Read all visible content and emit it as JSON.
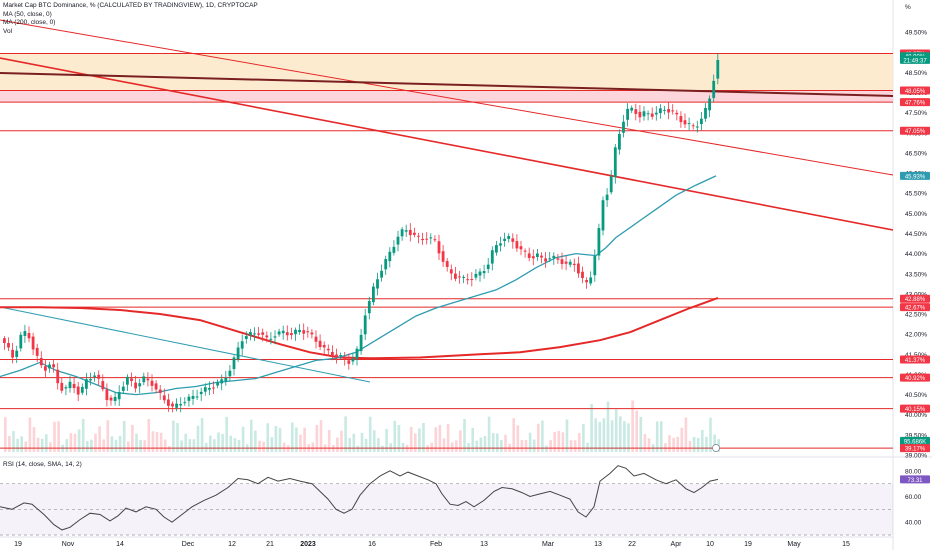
{
  "legend": {
    "title": "Market Cap BTC Dominance, % (CALCULATED BY TRADINGVIEW), 1D, CRYPTOCAP",
    "ma50": "MA (50, close, 0)",
    "ma200": "MA (200, close, 0)",
    "vol": "Vol",
    "rsi": "RSI (14, close, SMA, 14, 2)"
  },
  "axis": {
    "unit": "%",
    "price_ticks": [
      "49.50%",
      "49.00%",
      "48.50%",
      "48.00%",
      "47.50%",
      "47.00%",
      "46.50%",
      "46.00%",
      "45.50%",
      "45.00%",
      "44.50%",
      "44.00%",
      "43.50%",
      "43.00%",
      "42.50%",
      "42.00%",
      "41.50%",
      "41.00%",
      "40.50%",
      "40.00%",
      "39.50%",
      "39.00%"
    ],
    "rsi_ticks": [
      "80.00",
      "60.00",
      "40.00"
    ],
    "time_ticks": [
      "19",
      "Nov",
      "14",
      "Dec",
      "12",
      "21",
      "2023",
      "16",
      "Feb",
      "13",
      "Mar",
      "13",
      "22",
      "Apr",
      "10",
      "19",
      "May",
      "15"
    ]
  },
  "badges": [
    {
      "label": "48.97%",
      "color": "#f23645"
    },
    {
      "label": "48.90%",
      "color": "#089981"
    },
    {
      "label": "21:49:37",
      "color": "#089981"
    },
    {
      "label": "48.05%",
      "color": "#f23645"
    },
    {
      "label": "47.76%",
      "color": "#f23645"
    },
    {
      "label": "47.05%",
      "color": "#f23645"
    },
    {
      "label": "45.93%",
      "color": "#2e9cb0"
    },
    {
      "label": "42.88%",
      "color": "#f23645"
    },
    {
      "label": "42.67%",
      "color": "#f23645"
    },
    {
      "label": "41.37%",
      "color": "#f23645"
    },
    {
      "label": "40.92%",
      "color": "#f23645"
    },
    {
      "label": "40.15%",
      "color": "#f23645"
    },
    {
      "label": "95.686K",
      "color": "#089981"
    },
    {
      "label": "39.17%",
      "color": "#f23645"
    },
    {
      "label": "73.31",
      "color": "#7e57c2"
    }
  ],
  "colors": {
    "up": "#089981",
    "down": "#f23645",
    "ma50": "#2e9cb0",
    "ma200": "#e52828",
    "rsi": "#7e57c2",
    "resistance_zone": "#fde7c8",
    "red_zone": "#fbcfd3",
    "trendline": "#e52828",
    "blue_trend": "#2e9cb0"
  },
  "chart_data": {
    "type": "candlestick",
    "title": "Market Cap BTC Dominance, % (CALCULATED BY TRADINGVIEW), 1D, CRYPTOCAP",
    "ylim": [
      39.0,
      49.85
    ],
    "last_value": 48.9,
    "horizontal_levels": [
      48.97,
      48.05,
      47.76,
      47.05,
      42.88,
      42.67,
      41.37,
      40.92,
      40.15,
      39.17
    ],
    "zones": [
      {
        "from": 48.05,
        "to": 48.97,
        "color": "orange"
      },
      {
        "from": 47.76,
        "to": 48.05,
        "color": "red"
      }
    ],
    "ma50_last": 45.93,
    "rsi_last": 73.31,
    "rsi_range": [
      30,
      90
    ],
    "rsi_band": [
      30,
      70
    ],
    "price_path": [
      [
        0,
        41.9
      ],
      [
        5,
        41.7
      ],
      [
        12,
        41.4
      ],
      [
        20,
        42.0
      ],
      [
        26,
        42.05
      ],
      [
        34,
        41.5
      ],
      [
        42,
        41.1
      ],
      [
        50,
        41.3
      ],
      [
        56,
        40.8
      ],
      [
        62,
        40.6
      ],
      [
        70,
        40.8
      ],
      [
        78,
        40.5
      ],
      [
        86,
        40.9
      ],
      [
        94,
        41.0
      ],
      [
        100,
        40.7
      ],
      [
        106,
        40.4
      ],
      [
        112,
        40.3
      ],
      [
        118,
        40.6
      ],
      [
        126,
        40.9
      ],
      [
        134,
        40.7
      ],
      [
        142,
        40.9
      ],
      [
        150,
        40.8
      ],
      [
        158,
        40.5
      ],
      [
        166,
        40.3
      ],
      [
        172,
        40.15
      ],
      [
        178,
        40.3
      ],
      [
        184,
        40.35
      ],
      [
        192,
        40.45
      ],
      [
        198,
        40.55
      ],
      [
        206,
        40.65
      ],
      [
        214,
        40.75
      ],
      [
        222,
        40.85
      ],
      [
        230,
        41.2
      ],
      [
        236,
        41.6
      ],
      [
        242,
        41.95
      ],
      [
        250,
        42.0
      ],
      [
        258,
        42.05
      ],
      [
        266,
        41.85
      ],
      [
        274,
        42.0
      ],
      [
        282,
        42.05
      ],
      [
        290,
        42.0
      ],
      [
        298,
        42.1
      ],
      [
        306,
        42.05
      ],
      [
        314,
        41.85
      ],
      [
        322,
        41.65
      ],
      [
        330,
        41.5
      ],
      [
        338,
        41.45
      ],
      [
        346,
        41.3
      ],
      [
        352,
        41.4
      ],
      [
        358,
        41.7
      ],
      [
        362,
        42.4
      ],
      [
        368,
        42.8
      ],
      [
        374,
        43.3
      ],
      [
        380,
        43.6
      ],
      [
        386,
        43.9
      ],
      [
        392,
        44.2
      ],
      [
        398,
        44.5
      ],
      [
        404,
        44.6
      ],
      [
        410,
        44.5
      ],
      [
        418,
        44.35
      ],
      [
        426,
        44.4
      ],
      [
        434,
        44.3
      ],
      [
        440,
        43.9
      ],
      [
        446,
        43.6
      ],
      [
        452,
        43.45
      ],
      [
        458,
        43.4
      ],
      [
        464,
        43.35
      ],
      [
        470,
        43.4
      ],
      [
        478,
        43.5
      ],
      [
        486,
        43.7
      ],
      [
        492,
        44.1
      ],
      [
        498,
        44.3
      ],
      [
        506,
        44.4
      ],
      [
        512,
        44.3
      ],
      [
        518,
        44.1
      ],
      [
        524,
        44.0
      ],
      [
        530,
        43.9
      ],
      [
        536,
        43.95
      ],
      [
        542,
        43.85
      ],
      [
        550,
        43.9
      ],
      [
        558,
        43.85
      ],
      [
        566,
        43.7
      ],
      [
        572,
        43.8
      ],
      [
        578,
        43.5
      ],
      [
        584,
        43.2
      ],
      [
        590,
        43.5
      ],
      [
        596,
        44.3
      ],
      [
        602,
        45.4
      ],
      [
        608,
        45.6
      ],
      [
        614,
        46.6
      ],
      [
        620,
        47.2
      ],
      [
        626,
        47.55
      ],
      [
        632,
        47.6
      ],
      [
        638,
        47.4
      ],
      [
        644,
        47.5
      ],
      [
        650,
        47.45
      ],
      [
        656,
        47.5
      ],
      [
        662,
        47.6
      ],
      [
        668,
        47.55
      ],
      [
        674,
        47.45
      ],
      [
        680,
        47.3
      ],
      [
        686,
        47.2
      ],
      [
        692,
        47.15
      ],
      [
        698,
        47.25
      ],
      [
        704,
        47.55
      ],
      [
        710,
        48.0
      ],
      [
        714,
        48.6
      ],
      [
        718,
        48.9
      ]
    ],
    "ma50_path": [
      [
        0,
        40.95
      ],
      [
        20,
        41.1
      ],
      [
        40,
        41.3
      ],
      [
        56,
        41.1
      ],
      [
        76,
        40.95
      ],
      [
        96,
        40.75
      ],
      [
        116,
        40.55
      ],
      [
        136,
        40.5
      ],
      [
        156,
        40.55
      ],
      [
        176,
        40.65
      ],
      [
        196,
        40.7
      ],
      [
        216,
        40.8
      ],
      [
        236,
        40.85
      ],
      [
        256,
        40.9
      ],
      [
        276,
        41.05
      ],
      [
        296,
        41.2
      ],
      [
        316,
        41.35
      ],
      [
        336,
        41.4
      ],
      [
        356,
        41.55
      ],
      [
        376,
        41.85
      ],
      [
        396,
        42.15
      ],
      [
        416,
        42.45
      ],
      [
        436,
        42.65
      ],
      [
        456,
        42.8
      ],
      [
        476,
        42.95
      ],
      [
        496,
        43.1
      ],
      [
        516,
        43.35
      ],
      [
        536,
        43.65
      ],
      [
        556,
        43.9
      ],
      [
        576,
        44.0
      ],
      [
        596,
        43.95
      ],
      [
        606,
        44.15
      ],
      [
        616,
        44.4
      ],
      [
        636,
        44.75
      ],
      [
        656,
        45.1
      ],
      [
        676,
        45.45
      ],
      [
        696,
        45.7
      ],
      [
        716,
        45.93
      ]
    ],
    "ma200_path": [
      [
        0,
        42.67
      ],
      [
        40,
        42.67
      ],
      [
        80,
        42.65
      ],
      [
        120,
        42.6
      ],
      [
        160,
        42.5
      ],
      [
        200,
        42.35
      ],
      [
        240,
        42.05
      ],
      [
        280,
        41.75
      ],
      [
        310,
        41.55
      ],
      [
        340,
        41.42
      ],
      [
        370,
        41.4
      ],
      [
        420,
        41.42
      ],
      [
        480,
        41.5
      ],
      [
        520,
        41.55
      ],
      [
        560,
        41.68
      ],
      [
        600,
        41.85
      ],
      [
        630,
        42.05
      ],
      [
        660,
        42.35
      ],
      [
        690,
        42.65
      ],
      [
        718,
        42.9
      ]
    ],
    "rsi_path": [
      [
        0,
        52
      ],
      [
        12,
        50
      ],
      [
        24,
        55
      ],
      [
        32,
        54
      ],
      [
        44,
        46
      ],
      [
        54,
        38
      ],
      [
        62,
        34
      ],
      [
        70,
        36
      ],
      [
        80,
        42
      ],
      [
        90,
        47
      ],
      [
        100,
        46
      ],
      [
        110,
        41
      ],
      [
        118,
        45
      ],
      [
        126,
        51
      ],
      [
        136,
        48
      ],
      [
        146,
        52
      ],
      [
        156,
        50
      ],
      [
        164,
        44
      ],
      [
        172,
        40
      ],
      [
        182,
        46
      ],
      [
        192,
        52
      ],
      [
        204,
        57
      ],
      [
        216,
        61
      ],
      [
        228,
        67
      ],
      [
        238,
        74
      ],
      [
        248,
        73
      ],
      [
        258,
        70
      ],
      [
        268,
        75
      ],
      [
        278,
        72
      ],
      [
        290,
        74
      ],
      [
        300,
        72
      ],
      [
        312,
        70
      ],
      [
        320,
        64
      ],
      [
        328,
        58
      ],
      [
        336,
        50
      ],
      [
        344,
        47
      ],
      [
        352,
        50
      ],
      [
        360,
        61
      ],
      [
        370,
        70
      ],
      [
        380,
        76
      ],
      [
        390,
        80
      ],
      [
        400,
        76
      ],
      [
        408,
        79
      ],
      [
        418,
        76
      ],
      [
        428,
        73
      ],
      [
        436,
        70
      ],
      [
        442,
        62
      ],
      [
        450,
        54
      ],
      [
        458,
        53
      ],
      [
        466,
        56
      ],
      [
        474,
        52
      ],
      [
        484,
        57
      ],
      [
        494,
        64
      ],
      [
        502,
        67
      ],
      [
        512,
        66
      ],
      [
        522,
        63
      ],
      [
        530,
        60
      ],
      [
        540,
        62
      ],
      [
        550,
        64
      ],
      [
        560,
        61
      ],
      [
        570,
        58
      ],
      [
        578,
        48
      ],
      [
        586,
        44
      ],
      [
        594,
        52
      ],
      [
        600,
        72
      ],
      [
        610,
        78
      ],
      [
        618,
        84
      ],
      [
        626,
        82
      ],
      [
        634,
        76
      ],
      [
        644,
        78
      ],
      [
        656,
        73
      ],
      [
        666,
        70
      ],
      [
        676,
        73
      ],
      [
        686,
        66
      ],
      [
        694,
        63
      ],
      [
        702,
        67
      ],
      [
        710,
        72
      ],
      [
        718,
        73.3
      ]
    ]
  }
}
